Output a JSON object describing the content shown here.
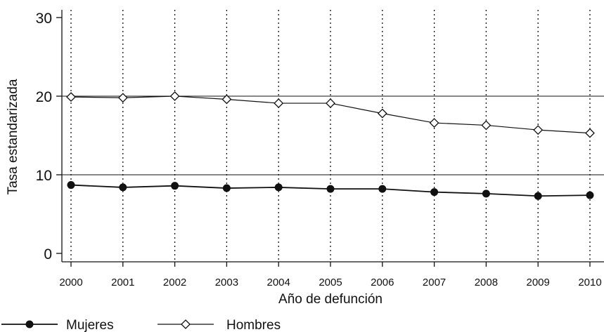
{
  "chart_data": {
    "type": "line",
    "xlabel": "Año de defunción",
    "ylabel": "Tasa estandarizada",
    "categories": [
      "2000",
      "2001",
      "2002",
      "2003",
      "2004",
      "2005",
      "2006",
      "2007",
      "2008",
      "2009",
      "2010"
    ],
    "ylim": [
      0,
      30
    ],
    "yticks": [
      "0",
      "10",
      "20",
      "30"
    ],
    "grid": "horizontal solid at 10, 20; vertical dotted at each year",
    "legend_position": "bottom-left",
    "series": [
      {
        "name": "Mujeres",
        "marker": "filled-circle",
        "values": [
          8.7,
          8.4,
          8.6,
          8.3,
          8.4,
          8.2,
          8.2,
          7.8,
          7.6,
          7.3,
          7.4
        ]
      },
      {
        "name": "Hombres",
        "marker": "hollow-diamond",
        "values": [
          19.9,
          19.8,
          20.0,
          19.6,
          19.1,
          19.1,
          17.8,
          16.6,
          16.3,
          15.7,
          15.3
        ]
      }
    ]
  },
  "colors": {
    "line": "#111111",
    "background": "#ffffff"
  }
}
